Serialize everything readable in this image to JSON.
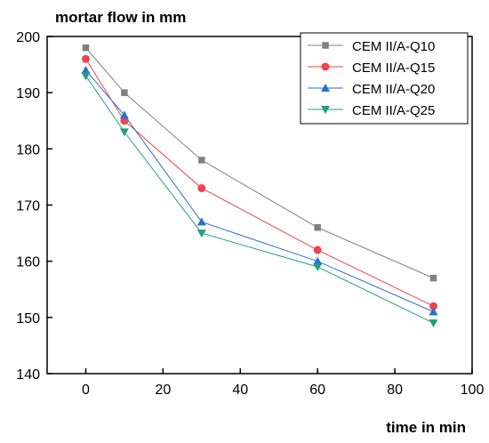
{
  "chart_data": {
    "type": "line",
    "title": "",
    "xlabel": "time in min",
    "ylabel": "mortar flow in mm",
    "xlim": [
      -10,
      100
    ],
    "ylim": [
      140,
      200
    ],
    "x_ticks": [
      0,
      20,
      40,
      60,
      80,
      100
    ],
    "y_ticks": [
      140,
      150,
      160,
      170,
      180,
      190,
      200
    ],
    "x": [
      0,
      10,
      30,
      60,
      90
    ],
    "series": [
      {
        "name": "CEM II/A-Q10",
        "values": [
          198,
          190,
          178,
          166,
          157
        ],
        "color": "#808080",
        "marker": "square"
      },
      {
        "name": "CEM II/A-Q15",
        "values": [
          196,
          185,
          173,
          162,
          152
        ],
        "color": "#f0444c",
        "marker": "circle"
      },
      {
        "name": "CEM II/A-Q20",
        "values": [
          194,
          186,
          167,
          160,
          151
        ],
        "color": "#2b6fd6",
        "marker": "triangle-up"
      },
      {
        "name": "CEM II/A-Q25",
        "values": [
          193,
          183,
          165,
          159,
          149
        ],
        "color": "#20a080",
        "marker": "triangle-down"
      }
    ],
    "grid": false,
    "legend_position": "top-right"
  }
}
